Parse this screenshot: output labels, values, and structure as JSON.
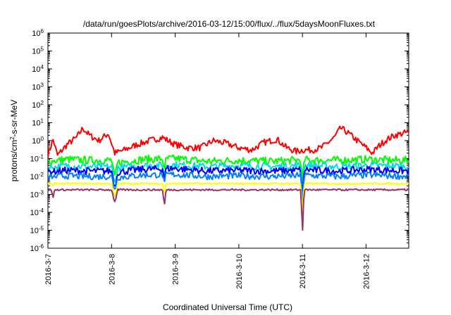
{
  "chart_data": {
    "type": "line",
    "title": "/data/run/goesPlots/archive/2016-03-12/15:00/flux/../flux/5daysMoonFluxes.txt",
    "xlabel": "Coordinated Universal Time (UTC)",
    "ylabel": "protons/cm²-s-sr-MeV",
    "y_scale": "log",
    "ylim": [
      1e-06,
      1000000.0
    ],
    "xlim": [
      0,
      5.67
    ],
    "x_unit": "days since 2016-3-7 00:00 UTC",
    "y_ticks": [
      {
        "base": "10",
        "exp": "-6",
        "value": 1e-06
      },
      {
        "base": "10",
        "exp": "-5",
        "value": 1e-05
      },
      {
        "base": "10",
        "exp": "-4",
        "value": 0.0001
      },
      {
        "base": "10",
        "exp": "-3",
        "value": 0.001
      },
      {
        "base": "10",
        "exp": "-2",
        "value": 0.01
      },
      {
        "base": "10",
        "exp": "-1",
        "value": 0.1
      },
      {
        "base": "10",
        "exp": "0",
        "value": 1
      },
      {
        "base": "10",
        "exp": "1",
        "value": 10
      },
      {
        "base": "10",
        "exp": "2",
        "value": 100
      },
      {
        "base": "10",
        "exp": "3",
        "value": 1000
      },
      {
        "base": "10",
        "exp": "4",
        "value": 10000
      },
      {
        "base": "10",
        "exp": "5",
        "value": 100000
      },
      {
        "base": "10",
        "exp": "6",
        "value": 1000000
      }
    ],
    "x_ticks": [
      {
        "label": "2016-3-7",
        "value": 0
      },
      {
        "label": "2016-3-8",
        "value": 1
      },
      {
        "label": "2016-3-9",
        "value": 2
      },
      {
        "label": "2016-3-10",
        "value": 3
      },
      {
        "label": "2016-3-11",
        "value": 4
      },
      {
        "label": "2016-3-12",
        "value": 5
      }
    ],
    "grid": false,
    "legend": "none",
    "series": [
      {
        "color": "#ff0000",
        "x": [
          0,
          0.08,
          0.15,
          0.3,
          0.45,
          0.55,
          0.65,
          0.8,
          0.95,
          1.05,
          1.2,
          1.4,
          1.6,
          1.8,
          2.0,
          2.2,
          2.4,
          2.6,
          2.8,
          3.0,
          3.2,
          3.4,
          3.6,
          3.75,
          3.9,
          4.0,
          4.15,
          4.3,
          4.5,
          4.6,
          4.7,
          4.8,
          5.0,
          5.1,
          5.2,
          5.3,
          5.45,
          5.67
        ],
        "values": [
          0.15,
          1.2,
          0.15,
          0.6,
          1.5,
          5.0,
          2.0,
          1.0,
          2.5,
          0.2,
          0.3,
          0.6,
          1.0,
          1.5,
          0.6,
          0.4,
          0.4,
          1.0,
          0.7,
          0.4,
          0.3,
          0.8,
          1.2,
          0.4,
          0.25,
          0.3,
          0.3,
          0.4,
          1.5,
          5.0,
          3.0,
          1.5,
          0.4,
          0.2,
          0.5,
          1.0,
          2.0,
          3.0
        ]
      },
      {
        "color": "#00ff00",
        "x": [
          0,
          0.3,
          0.6,
          1.0,
          1.05,
          1.1,
          1.5,
          2.0,
          2.5,
          3.0,
          3.5,
          3.9,
          4.0,
          4.2,
          4.6,
          5.0,
          5.4,
          5.67
        ],
        "values": [
          0.07,
          0.09,
          0.08,
          0.08,
          0.012,
          0.06,
          0.09,
          0.1,
          0.07,
          0.08,
          0.07,
          0.08,
          0.09,
          0.08,
          0.08,
          0.09,
          0.08,
          0.08
        ]
      },
      {
        "color": "#00dddd",
        "x": [
          0,
          0.3,
          0.6,
          1.0,
          1.05,
          1.1,
          1.5,
          2.0,
          2.5,
          3.0,
          3.5,
          3.9,
          4.0,
          4.2,
          4.6,
          5.0,
          5.4,
          5.67
        ],
        "values": [
          0.03,
          0.04,
          0.035,
          0.035,
          0.005,
          0.03,
          0.04,
          0.045,
          0.035,
          0.04,
          0.035,
          0.04,
          0.04,
          0.04,
          0.035,
          0.04,
          0.04,
          0.035
        ]
      },
      {
        "color": "#0000ff",
        "x": [
          0,
          0.3,
          0.6,
          1.0,
          1.05,
          1.1,
          1.5,
          2.0,
          2.5,
          3.0,
          3.5,
          3.9,
          4.0,
          4.2,
          4.6,
          5.0,
          5.4,
          5.67
        ],
        "values": [
          0.018,
          0.022,
          0.02,
          0.02,
          0.003,
          0.018,
          0.025,
          0.028,
          0.02,
          0.022,
          0.02,
          0.022,
          0.025,
          0.022,
          0.02,
          0.025,
          0.022,
          0.02
        ]
      },
      {
        "color": "#0080ff",
        "x": [
          0,
          0.3,
          0.6,
          1.0,
          1.05,
          1.1,
          1.5,
          2.0,
          2.5,
          3.0,
          3.5,
          3.9,
          4.0,
          4.2,
          4.6,
          5.0,
          5.4,
          5.67
        ],
        "values": [
          0.009,
          0.011,
          0.01,
          0.01,
          0.002,
          0.009,
          0.012,
          0.013,
          0.01,
          0.011,
          0.01,
          0.011,
          0.012,
          0.011,
          0.01,
          0.012,
          0.011,
          0.01
        ]
      },
      {
        "color": "#ffff00",
        "x": [
          0,
          0.3,
          0.6,
          1.0,
          1.05,
          1.1,
          1.5,
          2.0,
          2.5,
          2.8,
          3.0,
          3.5,
          3.9,
          4.0,
          4.2,
          4.6,
          5.0,
          5.4,
          5.67
        ],
        "values": [
          0.004,
          0.004,
          0.004,
          0.004,
          0.0008,
          0.004,
          0.004,
          0.004,
          0.004,
          0.004,
          0.004,
          0.004,
          0.004,
          0.004,
          0.004,
          0.004,
          0.004,
          0.004,
          0.004
        ]
      },
      {
        "color": "#993366",
        "x": [
          0,
          0.3,
          0.6,
          1.0,
          1.05,
          1.1,
          1.5,
          1.8,
          1.9,
          2.0,
          2.5,
          3.0,
          3.5,
          3.9,
          4.0,
          4.2,
          4.6,
          5.0,
          5.4,
          5.67
        ],
        "values": [
          0.0018,
          0.0018,
          0.0018,
          0.0018,
          0.0004,
          0.0018,
          0.0018,
          0.0018,
          0.0018,
          0.0018,
          0.0018,
          0.0018,
          0.0018,
          0.0018,
          0.0018,
          0.0018,
          0.0018,
          0.0018,
          0.0018,
          0.0018
        ]
      }
    ],
    "dips": [
      {
        "x": 0.08,
        "values": [
          0.07,
          0.03,
          0.018,
          0.009,
          0.003,
          0.0006
        ]
      },
      {
        "x": 1.05,
        "values": [
          0.012,
          0.005,
          0.003,
          0.002,
          0.0008,
          0.0004
        ]
      },
      {
        "x": 1.83,
        "values": [
          0.02,
          0.01,
          0.006,
          0.004,
          0.001,
          0.0002
        ]
      },
      {
        "x": 4.0,
        "values": [
          0.003,
          0.001,
          0.0004,
          0.0002,
          4e-05,
          6e-06
        ]
      }
    ]
  }
}
